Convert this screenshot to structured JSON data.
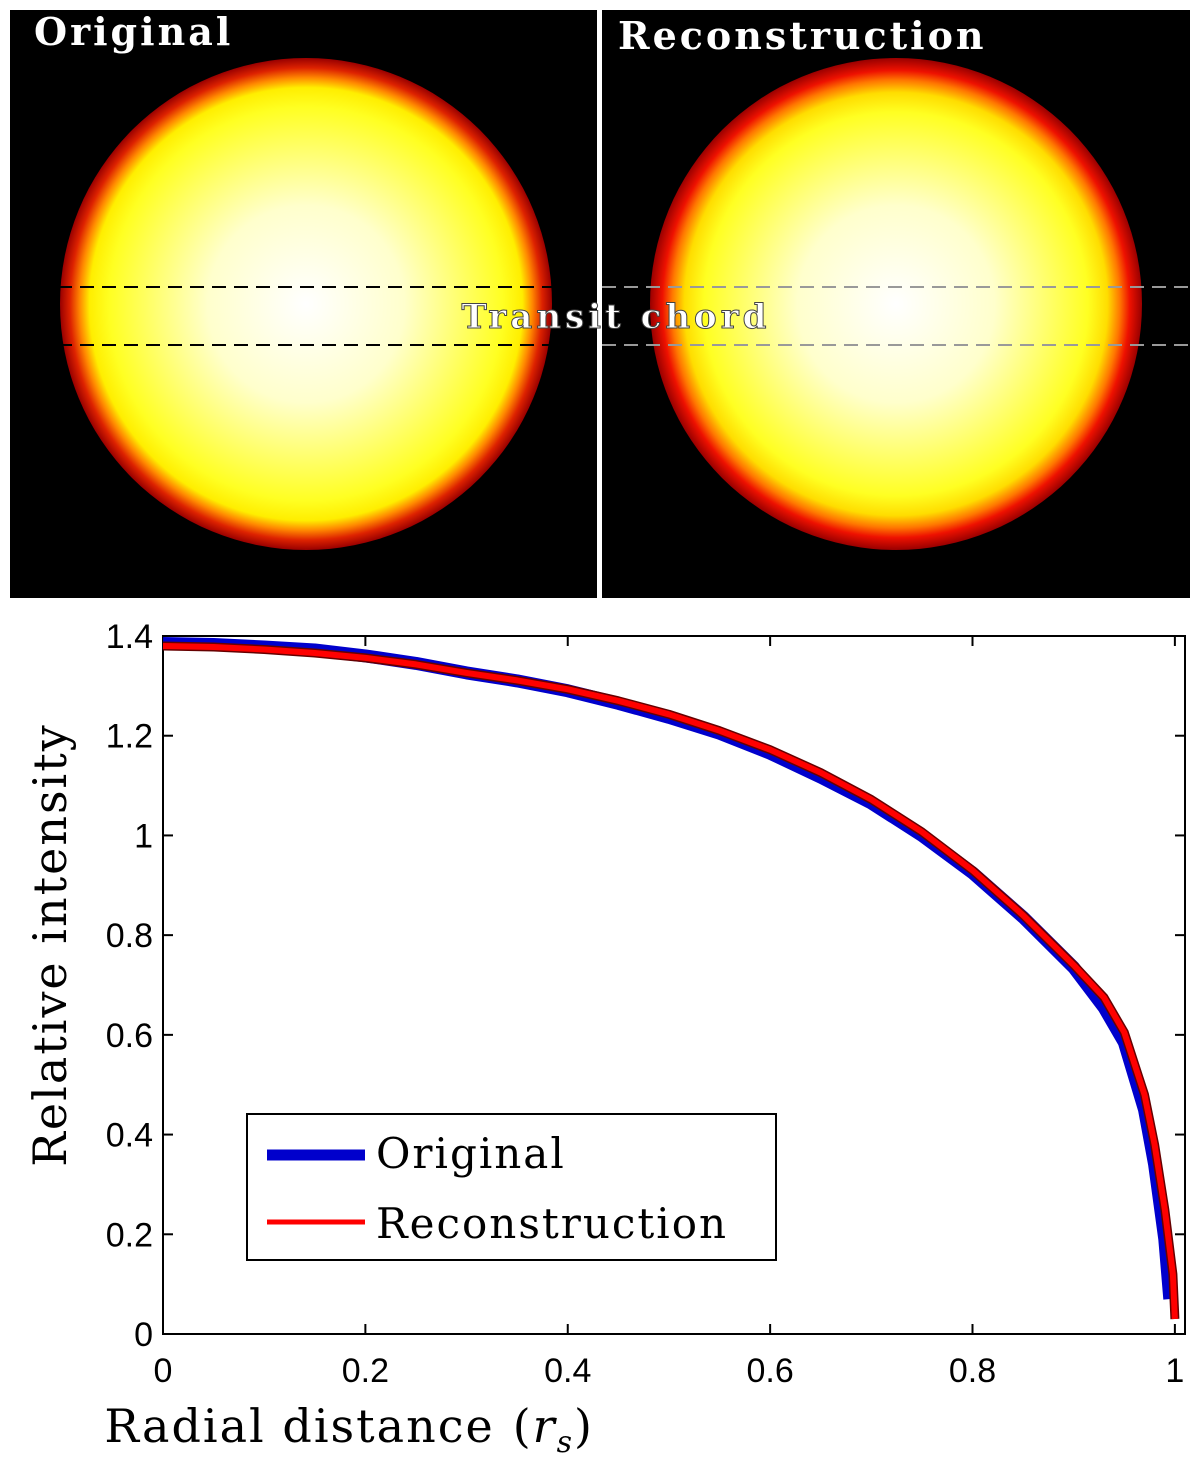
{
  "images": {
    "left_title": "Original",
    "right_title": "Reconstruction",
    "chord_label": "Transit chord",
    "colors": {
      "background": "#000000",
      "edge": "#cc0000",
      "mid": "#ff6600",
      "body": "#ffff00",
      "center": "#ffffff",
      "divider": "#ffffff"
    }
  },
  "chart_data": {
    "type": "line",
    "title": "",
    "xlabel": "Radial distance",
    "xlabel_symbol": "r",
    "xlabel_subscript": "s",
    "ylabel": "Relative intensity",
    "xlim": [
      0,
      1.01
    ],
    "ylim": [
      0,
      1.4
    ],
    "xticks": [
      0,
      0.2,
      0.4,
      0.6,
      0.8,
      1
    ],
    "xtick_labels": [
      "0",
      "0.2",
      "0.4",
      "0.6",
      "0.8",
      "1"
    ],
    "yticks": [
      0,
      0.2,
      0.4,
      0.6,
      0.8,
      1,
      1.2,
      1.4
    ],
    "ytick_labels": [
      "0",
      "0.2",
      "0.4",
      "0.6",
      "0.8",
      "1",
      "1.2",
      "1.4"
    ],
    "legend_position": "lower-left",
    "series": [
      {
        "name": "Original",
        "color": "#0000cc",
        "points": [
          [
            0,
            1.385
          ],
          [
            0.05,
            1.383
          ],
          [
            0.1,
            1.378
          ],
          [
            0.15,
            1.372
          ],
          [
            0.2,
            1.36
          ],
          [
            0.25,
            1.345
          ],
          [
            0.3,
            1.326
          ],
          [
            0.35,
            1.31
          ],
          [
            0.4,
            1.29
          ],
          [
            0.45,
            1.265
          ],
          [
            0.5,
            1.237
          ],
          [
            0.55,
            1.205
          ],
          [
            0.6,
            1.165
          ],
          [
            0.65,
            1.117
          ],
          [
            0.7,
            1.065
          ],
          [
            0.75,
            1.0
          ],
          [
            0.8,
            0.925
          ],
          [
            0.85,
            0.836
          ],
          [
            0.9,
            0.735
          ],
          [
            0.93,
            0.655
          ],
          [
            0.95,
            0.585
          ],
          [
            0.97,
            0.45
          ],
          [
            0.98,
            0.34
          ],
          [
            0.99,
            0.19
          ],
          [
            0.995,
            0.07
          ]
        ]
      },
      {
        "name": "Reconstruction",
        "color": "#ff0000",
        "points": [
          [
            0,
            1.38
          ],
          [
            0.05,
            1.378
          ],
          [
            0.1,
            1.373
          ],
          [
            0.15,
            1.366
          ],
          [
            0.2,
            1.356
          ],
          [
            0.25,
            1.343
          ],
          [
            0.3,
            1.326
          ],
          [
            0.35,
            1.311
          ],
          [
            0.4,
            1.293
          ],
          [
            0.45,
            1.27
          ],
          [
            0.5,
            1.243
          ],
          [
            0.55,
            1.21
          ],
          [
            0.6,
            1.172
          ],
          [
            0.65,
            1.126
          ],
          [
            0.7,
            1.072
          ],
          [
            0.75,
            1.007
          ],
          [
            0.8,
            0.93
          ],
          [
            0.85,
            0.84
          ],
          [
            0.9,
            0.74
          ],
          [
            0.93,
            0.675
          ],
          [
            0.95,
            0.605
          ],
          [
            0.97,
            0.48
          ],
          [
            0.98,
            0.38
          ],
          [
            0.99,
            0.25
          ],
          [
            0.998,
            0.12
          ],
          [
            1.0,
            0.03
          ]
        ]
      }
    ]
  }
}
